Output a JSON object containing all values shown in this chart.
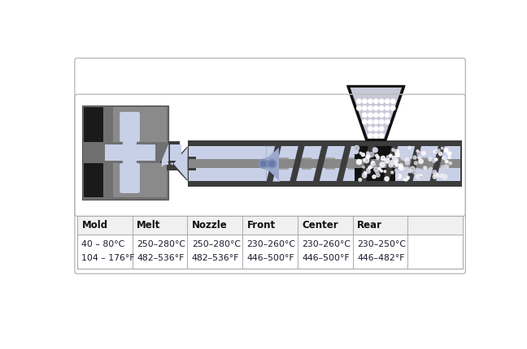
{
  "background_color": "#ffffff",
  "table_headers": [
    "Mold",
    "Melt",
    "Nozzle",
    "Front",
    "Center",
    "Rear",
    ""
  ],
  "table_row1": [
    "40 – 80°C",
    "250–280°C",
    "250–280°C",
    "230–260°C",
    "230–260°C",
    "230–250°C",
    ""
  ],
  "table_row2": [
    "104 – 176°F",
    "482–536°F",
    "482–536°F",
    "446–500°F",
    "446–500°F",
    "446–482°F",
    ""
  ],
  "gray_dark": "#2a2a2a",
  "gray_barrel": "#3c3c3c",
  "gray_mold": "#707070",
  "gray_mold_light": "#8a8a8a",
  "gray_screw": "#888888",
  "blue_light": "#c8d0e8",
  "blue_dim": "#9aa8cc",
  "black": "#111111",
  "white": "#ffffff",
  "text_color": "#1a1a2e"
}
